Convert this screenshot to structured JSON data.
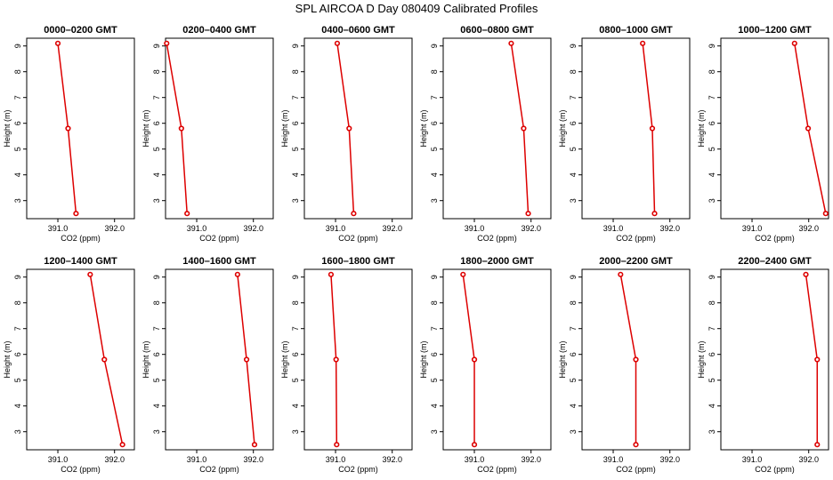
{
  "figure": {
    "title": "SPL AIRCOA D  Day 080409  Calibrated Profiles"
  },
  "chart_data": [
    {
      "type": "line",
      "title": "0000–0200 GMT",
      "xlabel": "CO2 (ppm)",
      "ylabel": "Height (m)",
      "xlim": [
        390.45,
        392.35
      ],
      "ylim": [
        2.3,
        9.3
      ],
      "xticks": [
        "391.0",
        "392.0"
      ],
      "yticks": [
        "3",
        "4",
        "5",
        "6",
        "7",
        "8",
        "9"
      ],
      "grid": false,
      "series": [
        {
          "x": [
            391.32,
            391.18,
            391.0
          ],
          "y": [
            2.5,
            5.8,
            9.1
          ],
          "color": "#dd0000"
        }
      ]
    },
    {
      "type": "line",
      "title": "0200–0400 GMT",
      "xlabel": "CO2 (ppm)",
      "ylabel": "Height (m)",
      "xlim": [
        390.45,
        392.35
      ],
      "ylim": [
        2.3,
        9.3
      ],
      "xticks": [
        "391.0",
        "392.0"
      ],
      "yticks": [
        "3",
        "4",
        "5",
        "6",
        "7",
        "8",
        "9"
      ],
      "grid": false,
      "series": [
        {
          "x": [
            390.83,
            390.73,
            390.47
          ],
          "y": [
            2.5,
            5.8,
            9.1
          ],
          "color": "#dd0000"
        }
      ]
    },
    {
      "type": "line",
      "title": "0400–0600 GMT",
      "xlabel": "CO2 (ppm)",
      "ylabel": "Height (m)",
      "xlim": [
        390.45,
        392.35
      ],
      "ylim": [
        2.3,
        9.3
      ],
      "xticks": [
        "391.0",
        "392.0"
      ],
      "yticks": [
        "3",
        "4",
        "5",
        "6",
        "7",
        "8",
        "9"
      ],
      "grid": false,
      "series": [
        {
          "x": [
            391.32,
            391.24,
            391.03
          ],
          "y": [
            2.5,
            5.8,
            9.1
          ],
          "color": "#dd0000"
        }
      ]
    },
    {
      "type": "line",
      "title": "0600–0800 GMT",
      "xlabel": "CO2 (ppm)",
      "ylabel": "Height (m)",
      "xlim": [
        390.45,
        392.35
      ],
      "ylim": [
        2.3,
        9.3
      ],
      "xticks": [
        "391.0",
        "392.0"
      ],
      "yticks": [
        "3",
        "4",
        "5",
        "6",
        "7",
        "8",
        "9"
      ],
      "grid": false,
      "series": [
        {
          "x": [
            391.95,
            391.87,
            391.65
          ],
          "y": [
            2.5,
            5.8,
            9.1
          ],
          "color": "#dd0000"
        }
      ]
    },
    {
      "type": "line",
      "title": "0800–1000 GMT",
      "xlabel": "CO2 (ppm)",
      "ylabel": "Height (m)",
      "xlim": [
        390.45,
        392.35
      ],
      "ylim": [
        2.3,
        9.3
      ],
      "xticks": [
        "391.0",
        "392.0"
      ],
      "yticks": [
        "3",
        "4",
        "5",
        "6",
        "7",
        "8",
        "9"
      ],
      "grid": false,
      "series": [
        {
          "x": [
            391.73,
            391.69,
            391.52
          ],
          "y": [
            2.5,
            5.8,
            9.1
          ],
          "color": "#dd0000"
        }
      ]
    },
    {
      "type": "line",
      "title": "1000–1200 GMT",
      "xlabel": "CO2 (ppm)",
      "ylabel": "Height (m)",
      "xlim": [
        390.45,
        392.35
      ],
      "ylim": [
        2.3,
        9.3
      ],
      "xticks": [
        "391.0",
        "392.0"
      ],
      "yticks": [
        "3",
        "4",
        "5",
        "6",
        "7",
        "8",
        "9"
      ],
      "grid": false,
      "series": [
        {
          "x": [
            392.3,
            391.99,
            391.75
          ],
          "y": [
            2.5,
            5.8,
            9.1
          ],
          "color": "#dd0000"
        }
      ]
    },
    {
      "type": "line",
      "title": "1200–1400 GMT",
      "xlabel": "CO2 (ppm)",
      "ylabel": "Height (m)",
      "xlim": [
        390.45,
        392.35
      ],
      "ylim": [
        2.3,
        9.3
      ],
      "xticks": [
        "391.0",
        "392.0"
      ],
      "yticks": [
        "3",
        "4",
        "5",
        "6",
        "7",
        "8",
        "9"
      ],
      "grid": false,
      "series": [
        {
          "x": [
            392.14,
            391.82,
            391.57
          ],
          "y": [
            2.5,
            5.8,
            9.1
          ],
          "color": "#dd0000"
        }
      ]
    },
    {
      "type": "line",
      "title": "1400–1600 GMT",
      "xlabel": "CO2 (ppm)",
      "ylabel": "Height (m)",
      "xlim": [
        390.45,
        392.35
      ],
      "ylim": [
        2.3,
        9.3
      ],
      "xticks": [
        "391.0",
        "392.0"
      ],
      "yticks": [
        "3",
        "4",
        "5",
        "6",
        "7",
        "8",
        "9"
      ],
      "grid": false,
      "series": [
        {
          "x": [
            392.02,
            391.88,
            391.72
          ],
          "y": [
            2.5,
            5.8,
            9.1
          ],
          "color": "#dd0000"
        }
      ]
    },
    {
      "type": "line",
      "title": "1600–1800 GMT",
      "xlabel": "CO2 (ppm)",
      "ylabel": "Height (m)",
      "xlim": [
        390.45,
        392.35
      ],
      "ylim": [
        2.3,
        9.3
      ],
      "xticks": [
        "391.0",
        "392.0"
      ],
      "yticks": [
        "3",
        "4",
        "5",
        "6",
        "7",
        "8",
        "9"
      ],
      "grid": false,
      "series": [
        {
          "x": [
            391.02,
            391.01,
            390.92
          ],
          "y": [
            2.5,
            5.8,
            9.1
          ],
          "color": "#dd0000"
        }
      ]
    },
    {
      "type": "line",
      "title": "1800–2000 GMT",
      "xlabel": "CO2 (ppm)",
      "ylabel": "Height (m)",
      "xlim": [
        390.45,
        392.35
      ],
      "ylim": [
        2.3,
        9.3
      ],
      "xticks": [
        "391.0",
        "392.0"
      ],
      "yticks": [
        "3",
        "4",
        "5",
        "6",
        "7",
        "8",
        "9"
      ],
      "grid": false,
      "series": [
        {
          "x": [
            391.0,
            391.0,
            390.8
          ],
          "y": [
            2.5,
            5.8,
            9.1
          ],
          "color": "#dd0000"
        }
      ]
    },
    {
      "type": "line",
      "title": "2000–2200 GMT",
      "xlabel": "CO2 (ppm)",
      "ylabel": "Height (m)",
      "xlim": [
        390.45,
        392.35
      ],
      "ylim": [
        2.3,
        9.3
      ],
      "xticks": [
        "391.0",
        "392.0"
      ],
      "yticks": [
        "3",
        "4",
        "5",
        "6",
        "7",
        "8",
        "9"
      ],
      "grid": false,
      "series": [
        {
          "x": [
            391.4,
            391.4,
            391.13
          ],
          "y": [
            2.5,
            5.8,
            9.1
          ],
          "color": "#dd0000"
        }
      ]
    },
    {
      "type": "line",
      "title": "2200–2400 GMT",
      "xlabel": "CO2 (ppm)",
      "ylabel": "Height (m)",
      "xlim": [
        390.45,
        392.35
      ],
      "ylim": [
        2.3,
        9.3
      ],
      "xticks": [
        "391.0",
        "392.0"
      ],
      "yticks": [
        "3",
        "4",
        "5",
        "6",
        "7",
        "8",
        "9"
      ],
      "grid": false,
      "series": [
        {
          "x": [
            392.15,
            392.15,
            391.95
          ],
          "y": [
            2.5,
            5.8,
            9.1
          ],
          "color": "#dd0000"
        }
      ]
    }
  ]
}
